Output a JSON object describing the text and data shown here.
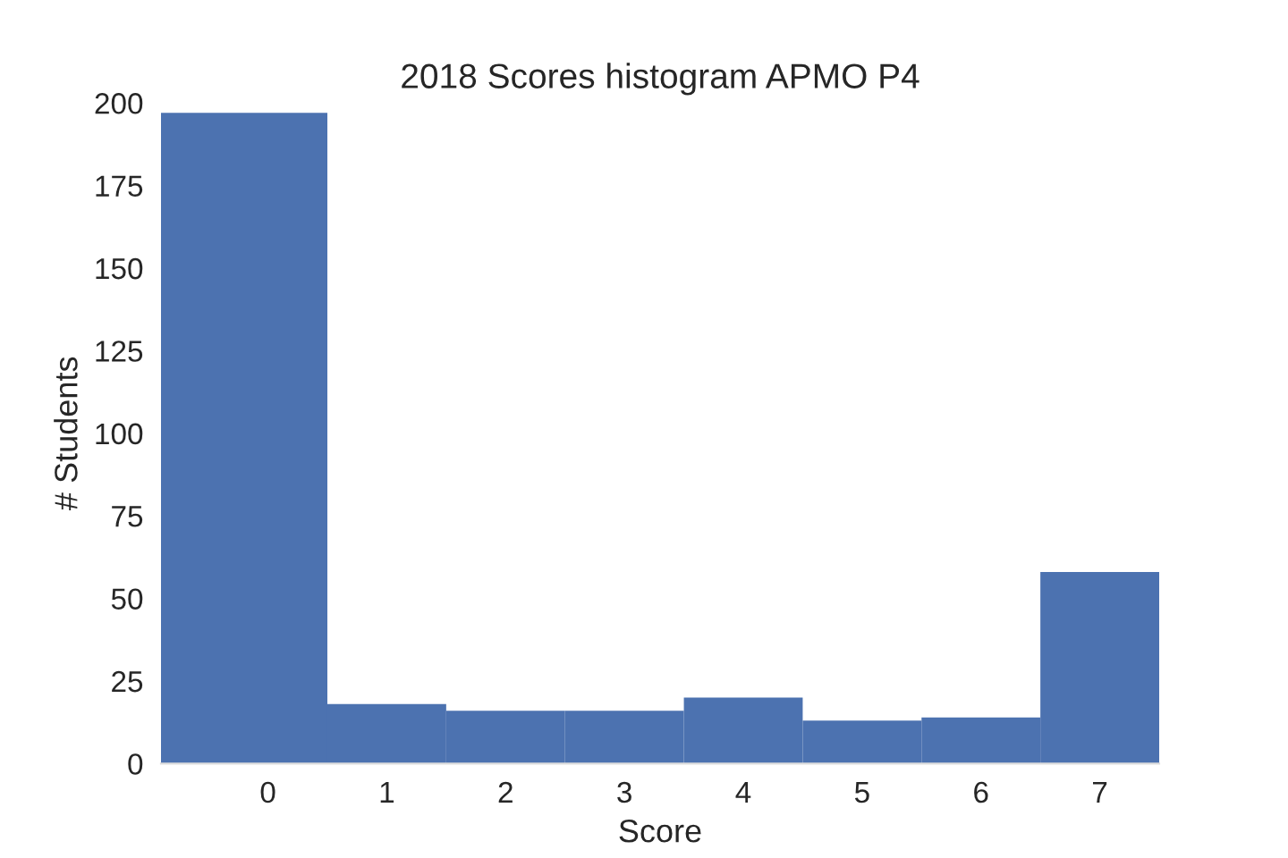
{
  "chart_data": {
    "type": "histogram",
    "title": "2018 Scores histogram APMO P4",
    "xlabel": "Score",
    "ylabel": "# Students",
    "bins": [
      -0.9,
      0.5,
      1.5,
      2.5,
      3.5,
      4.5,
      5.5,
      6.5,
      7.5
    ],
    "values": [
      197,
      18,
      16,
      16,
      20,
      13,
      14,
      58
    ],
    "color": "#4c72b0",
    "xlim": [
      -0.9,
      7.5
    ],
    "xticks": [
      0,
      1,
      2,
      3,
      4,
      5,
      6,
      7
    ],
    "ylim": [
      0,
      200
    ],
    "yticks": [
      0,
      25,
      50,
      75,
      100,
      125,
      150,
      175,
      200
    ],
    "grid": false
  }
}
